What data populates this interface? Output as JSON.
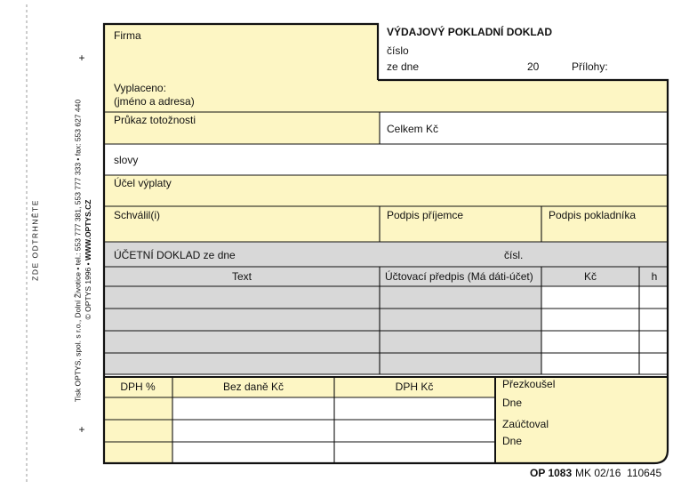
{
  "side": {
    "tear": "ZDE ODTRHNĚTE",
    "printer": "Tisk OPTYS, spol. s r.o., Dolní Životice • tel.: 553 777 381, 553 777 333 • fax: 553 627 440",
    "copyright": "© OPTYS 1996 •",
    "web": "WWW.OPTYS.CZ"
  },
  "header": {
    "firma": "Firma",
    "title": "VÝDAJOVÝ POKLADNÍ DOKLAD",
    "cislo": "číslo",
    "ze_dne": "ze dne",
    "year": "20",
    "prilohy": "Přílohy:"
  },
  "fields": {
    "vyplaceno": "Vyplaceno:",
    "jmeno": "(jméno a adresa)",
    "prukaz": "Průkaz totožnosti",
    "celkem": "Celkem Kč",
    "slovy": "slovy",
    "ucel": "Účel výplaty",
    "schvalil": "Schválil(i)",
    "podpis_prijemce": "Podpis příjemce",
    "podpis_pokladnika": "Podpis pokladníka"
  },
  "ucetni": {
    "title": "ÚČETNÍ DOKLAD ze dne",
    "cisl": "čísl.",
    "columns": [
      "Text",
      "Účtovací předpis (Má dáti-účet)",
      "Kč",
      "h"
    ]
  },
  "dph": {
    "columns": [
      "DPH %",
      "Bez daně Kč",
      "DPH Kč"
    ],
    "prezkousel": "Přezkoušel",
    "dne1": "Dne",
    "zauctoval": "Zaúčtoval",
    "dne2": "Dne"
  },
  "footer": {
    "code": "OP 1083",
    "ref": "MK 02/16  110645"
  }
}
